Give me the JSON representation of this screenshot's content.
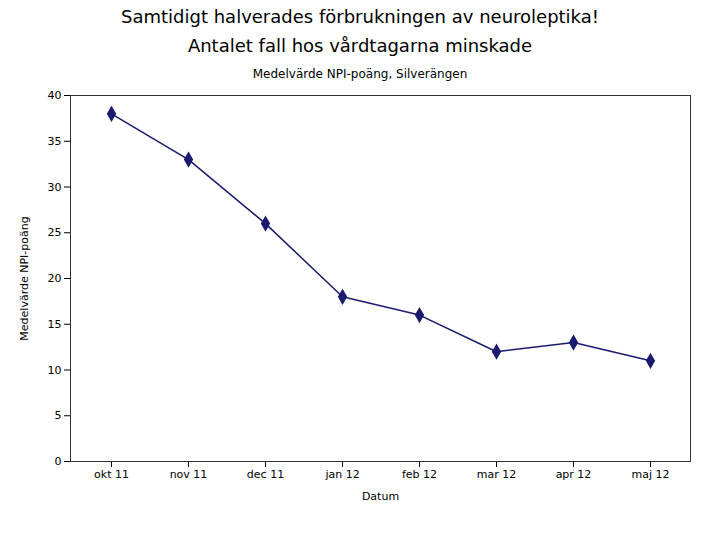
{
  "chart_data": {
    "type": "line",
    "title": "Medelvärde NPI-poäng, Silverängen",
    "annotations": [
      "Samtidigt halverades förbrukningen av neuroleptika!",
      "Antalet fall hos vårdtagarna minskade"
    ],
    "xlabel": "Datum",
    "ylabel": "Medelvärde NPI-poäng",
    "categories": [
      "okt 11",
      "nov 11",
      "dec 11",
      "jan 12",
      "feb 12",
      "mar 12",
      "apr 12",
      "maj 12"
    ],
    "values": [
      38,
      33,
      26,
      18,
      16,
      12,
      13,
      11
    ],
    "color": "#1a1a6e",
    "marker": "diamond",
    "ylim": [
      0,
      40
    ],
    "yticks": [
      0,
      5,
      10,
      15,
      20,
      25,
      30,
      35,
      40
    ],
    "grid": false
  }
}
